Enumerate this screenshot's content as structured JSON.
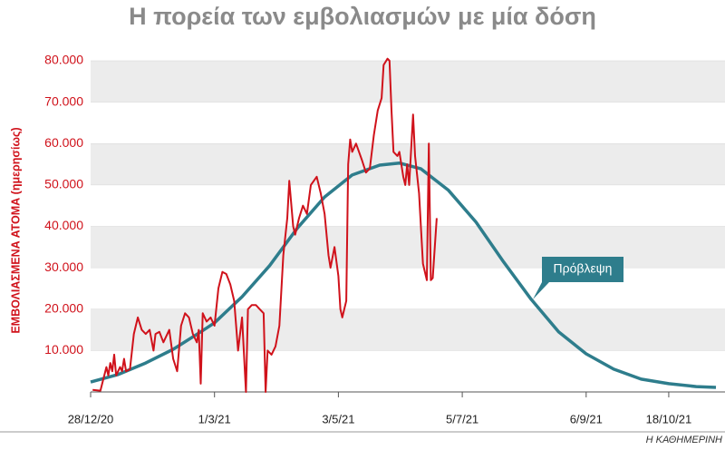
{
  "chart_data": {
    "type": "line",
    "title": "Η πορεία των εμβολιασμών με μία δόση",
    "ylabel": "ΕΜΒΟΛΙΑΣΜΕΝΑ ΑΤΟΜΑ (ημερησίως)",
    "source": "Η ΚΑΘΗΜΕΡΙΝΗ",
    "xlim": [
      "2020-12-28",
      "2021-11-11"
    ],
    "xticks": [
      {
        "value": "2020-12-28",
        "label": "28/12/20"
      },
      {
        "value": "2021-03-01",
        "label": "1/3/21"
      },
      {
        "value": "2021-05-03",
        "label": "3/5/21"
      },
      {
        "value": "2021-07-05",
        "label": "5/7/21"
      },
      {
        "value": "2021-09-06",
        "label": "6/9/21"
      },
      {
        "value": "2021-10-18",
        "label": "18/10/21"
      }
    ],
    "ylim": [
      0,
      80000
    ],
    "yticks": [
      {
        "value": 10000,
        "label": "10.000"
      },
      {
        "value": 20000,
        "label": "20.000"
      },
      {
        "value": 30000,
        "label": "30.000"
      },
      {
        "value": 40000,
        "label": "40.000"
      },
      {
        "value": 50000,
        "label": "50.000"
      },
      {
        "value": 60000,
        "label": "60.000"
      },
      {
        "value": 70000,
        "label": "70.000"
      },
      {
        "value": 80000,
        "label": "80.000"
      }
    ],
    "banded_grid": true,
    "series": [
      {
        "color": "#d0121b",
        "x": [
          "2020-12-29",
          "2021-01-02",
          "2021-01-05",
          "2021-01-06",
          "2021-01-07",
          "2021-01-08",
          "2021-01-09",
          "2021-01-10",
          "2021-01-12",
          "2021-01-13",
          "2021-01-14",
          "2021-01-15",
          "2021-01-17",
          "2021-01-19",
          "2021-01-21",
          "2021-01-23",
          "2021-01-25",
          "2021-01-27",
          "2021-01-29",
          "2021-01-30",
          "2021-02-01",
          "2021-02-03",
          "2021-02-06",
          "2021-02-08",
          "2021-02-10",
          "2021-02-12",
          "2021-02-14",
          "2021-02-16",
          "2021-02-18",
          "2021-02-20",
          "2021-02-21",
          "2021-02-22",
          "2021-02-23",
          "2021-02-25",
          "2021-02-27",
          "2021-03-01",
          "2021-03-03",
          "2021-03-05",
          "2021-03-07",
          "2021-03-09",
          "2021-03-11",
          "2021-03-13",
          "2021-03-15",
          "2021-03-17",
          "2021-03-18",
          "2021-03-20",
          "2021-03-22",
          "2021-03-24",
          "2021-03-26",
          "2021-03-27",
          "2021-03-28",
          "2021-03-30",
          "2021-04-01",
          "2021-04-03",
          "2021-04-05",
          "2021-04-07",
          "2021-04-08",
          "2021-04-10",
          "2021-04-11",
          "2021-04-13",
          "2021-04-15",
          "2021-04-17",
          "2021-04-19",
          "2021-04-22",
          "2021-04-24",
          "2021-04-26",
          "2021-04-28",
          "2021-04-29",
          "2021-05-01",
          "2021-05-03",
          "2021-05-04",
          "2021-05-05",
          "2021-05-07",
          "2021-05-08",
          "2021-05-09",
          "2021-05-10",
          "2021-05-12",
          "2021-05-15",
          "2021-05-17",
          "2021-05-19",
          "2021-05-21",
          "2021-05-23",
          "2021-05-25",
          "2021-05-26",
          "2021-05-28",
          "2021-05-29",
          "2021-05-30",
          "2021-05-31",
          "2021-06-02",
          "2021-06-03",
          "2021-06-05",
          "2021-06-06",
          "2021-06-07",
          "2021-06-08",
          "2021-06-10",
          "2021-06-11",
          "2021-06-13",
          "2021-06-15",
          "2021-06-17",
          "2021-06-18",
          "2021-06-19",
          "2021-06-20",
          "2021-06-22"
        ],
        "values": [
          500,
          300,
          6000,
          4000,
          7000,
          5000,
          9000,
          4000,
          6000,
          5000,
          8000,
          5000,
          5500,
          14000,
          18000,
          15000,
          14000,
          15000,
          10000,
          14000,
          14500,
          12000,
          15000,
          8000,
          5000,
          16000,
          19000,
          18000,
          14000,
          12000,
          15000,
          2000,
          19000,
          17000,
          18000,
          16000,
          25000,
          29000,
          28500,
          26000,
          22000,
          10000,
          18000,
          0,
          20000,
          21000,
          21000,
          20000,
          19000,
          0,
          10000,
          9000,
          11000,
          16000,
          33000,
          42000,
          51000,
          40000,
          38000,
          42000,
          45000,
          43000,
          50000,
          52000,
          48000,
          43000,
          33000,
          30000,
          35000,
          28000,
          20000,
          18000,
          22000,
          55000,
          61000,
          58000,
          60000,
          56000,
          53000,
          54000,
          62000,
          68000,
          71000,
          79000,
          80500,
          80000,
          68000,
          58000,
          57000,
          58000,
          52000,
          50000,
          55000,
          50000,
          67000,
          57000,
          48000,
          31000,
          27000,
          60000,
          27000,
          27500,
          42000
        ]
      },
      {
        "name": "Πρόβλεψη",
        "color": "#2e7d8c",
        "x": [
          "2020-12-28",
          "2021-01-11",
          "2021-01-25",
          "2021-02-08",
          "2021-02-22",
          "2021-03-01",
          "2021-03-15",
          "2021-03-29",
          "2021-04-12",
          "2021-04-26",
          "2021-05-10",
          "2021-05-24",
          "2021-06-03",
          "2021-06-14",
          "2021-06-28",
          "2021-07-12",
          "2021-07-26",
          "2021-08-09",
          "2021-08-23",
          "2021-09-06",
          "2021-09-20",
          "2021-10-04",
          "2021-10-18",
          "2021-11-01",
          "2021-11-11"
        ],
        "values": [
          2400,
          4200,
          7000,
          10300,
          14500,
          16700,
          23000,
          30500,
          39500,
          47100,
          52400,
          54800,
          55300,
          53900,
          48700,
          41000,
          31400,
          22400,
          14500,
          9200,
          5500,
          3100,
          2000,
          1300,
          1100
        ]
      }
    ]
  }
}
